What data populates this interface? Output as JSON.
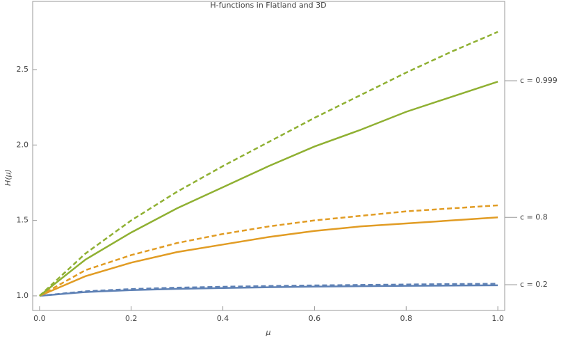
{
  "chart_data": {
    "type": "line",
    "title": "H-functions in Flatland and 3D",
    "x_label": "μ",
    "y_label": "H(μ)",
    "x": [
      0,
      0.1,
      0.2,
      0.3,
      0.4,
      0.5,
      0.6,
      0.7,
      0.8,
      0.9,
      1.0
    ],
    "series": [
      {
        "color": "#5e81b5",
        "dashed": true,
        "values": [
          1,
          1.03,
          1.045,
          1.054,
          1.06,
          1.065,
          1.069,
          1.072,
          1.075,
          1.078,
          1.08
        ]
      },
      {
        "color": "#5e81b5",
        "dashed": false,
        "values": [
          1,
          1.025,
          1.038,
          1.046,
          1.052,
          1.057,
          1.061,
          1.064,
          1.066,
          1.068,
          1.07
        ]
      },
      {
        "color": "#e19c24",
        "dashed": true,
        "values": [
          1,
          1.17,
          1.27,
          1.35,
          1.41,
          1.46,
          1.5,
          1.53,
          1.56,
          1.58,
          1.6
        ]
      },
      {
        "color": "#e19c24",
        "dashed": false,
        "values": [
          1,
          1.13,
          1.22,
          1.29,
          1.34,
          1.39,
          1.43,
          1.46,
          1.48,
          1.5,
          1.52
        ]
      },
      {
        "color": "#8fb032",
        "dashed": true,
        "values": [
          1,
          1.28,
          1.5,
          1.69,
          1.86,
          2.02,
          2.18,
          2.33,
          2.48,
          2.62,
          2.75
        ]
      },
      {
        "color": "#8fb032",
        "dashed": false,
        "values": [
          1,
          1.24,
          1.42,
          1.58,
          1.72,
          1.86,
          1.99,
          2.1,
          2.22,
          2.32,
          2.42
        ]
      }
    ],
    "annotations": [
      {
        "text": "c = 0.999",
        "y": 2.426
      },
      {
        "text": "c = 0.8",
        "y": 1.52
      },
      {
        "text": "c = 0.2",
        "y": 1.074
      }
    ],
    "xlim": [
      -0.015,
      1.015
    ],
    "ylim": [
      0.903,
      2.952
    ],
    "xticks": [
      {
        "value": 0,
        "label": "0.0"
      },
      0.2,
      0.4,
      0.6,
      0.8,
      {
        "value": 1,
        "label": "1.0"
      }
    ],
    "yticks": [
      {
        "value": 1,
        "label": "1.0"
      },
      1.5,
      {
        "value": 2,
        "label": "2.0"
      },
      2.5
    ]
  }
}
